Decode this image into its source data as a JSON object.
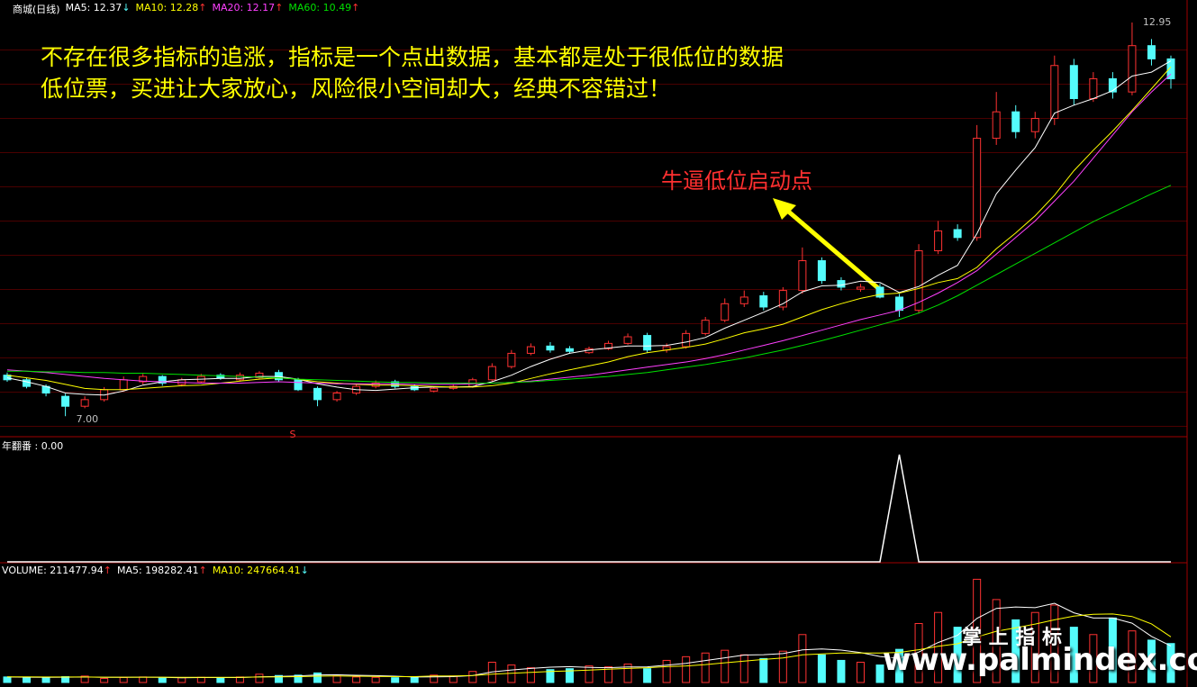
{
  "chart_data": [
    {
      "type": "candlestick",
      "title": "商城(日线)",
      "ylim": [
        6.69,
        13.29
      ],
      "up_color": "#ff3232",
      "down_color": "#54fcfc",
      "open": [
        7.62,
        7.55,
        7.45,
        7.3,
        7.15,
        7.25,
        7.4,
        7.52,
        7.6,
        7.48,
        7.52,
        7.62,
        7.55,
        7.58,
        7.66,
        7.55,
        7.42,
        7.25,
        7.35,
        7.45,
        7.52,
        7.45,
        7.38,
        7.42,
        7.45,
        7.55,
        7.75,
        7.95,
        8.06,
        8.02,
        7.96,
        8.02,
        8.1,
        8.22,
        8.0,
        8.05,
        8.25,
        8.45,
        8.7,
        8.82,
        8.65,
        8.9,
        9.35,
        9.05,
        8.92,
        8.95,
        8.8,
        8.6,
        9.5,
        9.82,
        9.7,
        11.2,
        11.6,
        11.3,
        11.5,
        12.3,
        11.8,
        12.1,
        11.9,
        12.6,
        12.4
      ],
      "high": [
        7.66,
        7.58,
        7.48,
        7.34,
        7.3,
        7.44,
        7.6,
        7.64,
        7.62,
        7.58,
        7.64,
        7.65,
        7.66,
        7.68,
        7.7,
        7.58,
        7.45,
        7.38,
        7.48,
        7.54,
        7.55,
        7.48,
        7.45,
        7.48,
        7.58,
        7.8,
        8.0,
        8.1,
        8.12,
        8.06,
        8.05,
        8.14,
        8.25,
        8.26,
        8.1,
        8.3,
        8.5,
        8.78,
        8.9,
        8.88,
        8.95,
        9.55,
        9.4,
        9.1,
        9.0,
        9.0,
        8.85,
        9.6,
        9.95,
        9.9,
        11.4,
        11.9,
        11.7,
        11.6,
        12.45,
        12.4,
        12.2,
        12.2,
        12.95,
        12.7,
        12.45
      ],
      "low": [
        7.52,
        7.42,
        7.3,
        7.0,
        7.12,
        7.22,
        7.38,
        7.48,
        7.46,
        7.45,
        7.5,
        7.55,
        7.52,
        7.56,
        7.52,
        7.38,
        7.15,
        7.22,
        7.32,
        7.42,
        7.42,
        7.38,
        7.36,
        7.4,
        7.43,
        7.52,
        7.72,
        7.92,
        7.96,
        7.95,
        7.94,
        8.0,
        8.08,
        7.96,
        7.96,
        8.02,
        8.22,
        8.42,
        8.65,
        8.6,
        8.6,
        8.85,
        9.0,
        8.9,
        8.88,
        8.78,
        8.5,
        8.55,
        9.45,
        9.65,
        9.65,
        11.1,
        11.2,
        11.2,
        11.4,
        11.7,
        11.75,
        11.8,
        11.85,
        12.3,
        11.95
      ],
      "close": [
        7.55,
        7.45,
        7.35,
        7.15,
        7.25,
        7.4,
        7.55,
        7.6,
        7.5,
        7.55,
        7.6,
        7.58,
        7.62,
        7.65,
        7.55,
        7.4,
        7.25,
        7.35,
        7.45,
        7.5,
        7.45,
        7.4,
        7.42,
        7.45,
        7.55,
        7.75,
        7.95,
        8.05,
        8.0,
        7.98,
        8.02,
        8.1,
        8.2,
        8.0,
        8.05,
        8.25,
        8.45,
        8.7,
        8.8,
        8.65,
        8.9,
        9.35,
        9.05,
        8.95,
        8.95,
        8.8,
        8.6,
        9.5,
        9.8,
        9.7,
        11.2,
        11.6,
        11.3,
        11.5,
        12.3,
        11.8,
        12.1,
        11.9,
        12.6,
        12.4,
        12.1
      ],
      "series": [
        {
          "name": "MA5: 12.37",
          "trend": "↓",
          "trend_color": "#54fcfc",
          "color": "#ffffff",
          "values": [
            7.58,
            7.52,
            7.45,
            7.35,
            7.33,
            7.32,
            7.38,
            7.47,
            7.52,
            7.55,
            7.56,
            7.57,
            7.57,
            7.6,
            7.6,
            7.56,
            7.49,
            7.44,
            7.4,
            7.39,
            7.41,
            7.43,
            7.44,
            7.44,
            7.45,
            7.52,
            7.62,
            7.75,
            7.86,
            7.95,
            8.0,
            8.03,
            8.06,
            8.06,
            8.07,
            8.12,
            8.19,
            8.33,
            8.45,
            8.57,
            8.7,
            8.88,
            8.97,
            8.98,
            9.04,
            9.02,
            8.87,
            8.96,
            9.13,
            9.28,
            9.76,
            10.36,
            10.72,
            11.06,
            11.58,
            11.7,
            11.8,
            11.92,
            12.14,
            12.2,
            12.37
          ]
        },
        {
          "name": "MA10: 12.28",
          "trend": "↑",
          "trend_color": "#ff3232",
          "color": "#ffff00",
          "values": [
            7.62,
            7.58,
            7.54,
            7.48,
            7.42,
            7.4,
            7.4,
            7.42,
            7.44,
            7.46,
            7.47,
            7.5,
            7.53,
            7.56,
            7.58,
            7.56,
            7.52,
            7.5,
            7.48,
            7.47,
            7.47,
            7.46,
            7.45,
            7.44,
            7.44,
            7.46,
            7.5,
            7.57,
            7.64,
            7.7,
            7.76,
            7.82,
            7.9,
            7.96,
            8.0,
            8.04,
            8.09,
            8.17,
            8.26,
            8.32,
            8.39,
            8.5,
            8.61,
            8.7,
            8.78,
            8.84,
            8.86,
            8.93,
            9.02,
            9.08,
            9.25,
            9.53,
            9.77,
            10.03,
            10.34,
            10.71,
            11.02,
            11.31,
            11.62,
            11.95,
            12.28
          ]
        },
        {
          "name": "MA20: 12.17",
          "trend": "↑",
          "trend_color": "#ff3232",
          "color": "#ff40ff",
          "values": [
            7.7,
            7.68,
            7.66,
            7.63,
            7.6,
            7.57,
            7.55,
            7.53,
            7.52,
            7.51,
            7.5,
            7.5,
            7.5,
            7.51,
            7.52,
            7.51,
            7.5,
            7.49,
            7.49,
            7.49,
            7.49,
            7.48,
            7.48,
            7.48,
            7.49,
            7.5,
            7.51,
            7.53,
            7.56,
            7.59,
            7.62,
            7.66,
            7.7,
            7.74,
            7.78,
            7.82,
            7.87,
            7.93,
            8.0,
            8.07,
            8.14,
            8.22,
            8.3,
            8.38,
            8.46,
            8.53,
            8.6,
            8.72,
            8.86,
            9.02,
            9.2,
            9.45,
            9.7,
            9.95,
            10.25,
            10.55,
            10.9,
            11.25,
            11.6,
            11.9,
            12.17
          ]
        },
        {
          "name": "MA60: 10.49",
          "trend": "↑",
          "trend_color": "#ff3232",
          "color": "#00e000",
          "values": [
            7.68,
            7.68,
            7.67,
            7.67,
            7.66,
            7.66,
            7.65,
            7.65,
            7.64,
            7.63,
            7.62,
            7.61,
            7.6,
            7.59,
            7.58,
            7.56,
            7.55,
            7.54,
            7.53,
            7.52,
            7.51,
            7.51,
            7.5,
            7.5,
            7.5,
            7.5,
            7.51,
            7.52,
            7.54,
            7.56,
            7.58,
            7.6,
            7.63,
            7.66,
            7.7,
            7.74,
            7.78,
            7.83,
            7.88,
            7.94,
            8.0,
            8.07,
            8.14,
            8.22,
            8.3,
            8.38,
            8.46,
            8.56,
            8.68,
            8.82,
            8.98,
            9.14,
            9.3,
            9.46,
            9.62,
            9.78,
            9.94,
            10.08,
            10.22,
            10.36,
            10.49
          ]
        }
      ],
      "annotations": [
        {
          "x": 3,
          "y": 7.0,
          "label": "7.00",
          "color": "#c0c0c0"
        },
        {
          "x": 58,
          "y": 12.95,
          "label": "12.95",
          "color": "#c0c0c0"
        },
        {
          "x": 14,
          "y": 6.72,
          "label": "S",
          "color": "#ff3232"
        }
      ]
    },
    {
      "type": "line",
      "title": "年翻番 : 0.00",
      "color": "#ffffff",
      "ylim": [
        0,
        1.15
      ],
      "values": [
        0,
        0,
        0,
        0,
        0,
        0,
        0,
        0,
        0,
        0,
        0,
        0,
        0,
        0,
        0,
        0,
        0,
        0,
        0,
        0,
        0,
        0,
        0,
        0,
        0,
        0,
        0,
        0,
        0,
        0,
        0,
        0,
        0,
        0,
        0,
        0,
        0,
        0,
        0,
        0,
        0,
        0,
        0,
        0,
        0,
        0,
        1,
        0,
        0,
        0,
        0,
        0,
        0,
        0,
        0,
        0,
        0,
        0,
        0,
        0,
        0
      ]
    },
    {
      "type": "bar",
      "title": "VOLUME: 211477.94",
      "title_trend": "↑",
      "title_trend_color": "#ff3232",
      "ylim": [
        0,
        640000
      ],
      "values": [
        30000,
        28000,
        25000,
        32000,
        35000,
        22000,
        27000,
        30000,
        24000,
        26000,
        28000,
        25000,
        30000,
        45000,
        38000,
        40000,
        52000,
        35000,
        30000,
        28000,
        26000,
        30000,
        40000,
        35000,
        60000,
        110000,
        95000,
        80000,
        70000,
        75000,
        90000,
        85000,
        100000,
        75000,
        120000,
        140000,
        160000,
        175000,
        150000,
        130000,
        170000,
        260000,
        150000,
        120000,
        110000,
        95000,
        180000,
        320000,
        380000,
        300000,
        560000,
        450000,
        340000,
        380000,
        420000,
        300000,
        260000,
        350000,
        280000,
        230000,
        211477.94
      ],
      "series": [
        {
          "name": "MA5: 198282.41",
          "trend": "↑",
          "trend_color": "#ff3232",
          "color": "#ffffff",
          "values": [
            30000,
            29000,
            28000,
            29000,
            30000,
            28000,
            28000,
            29000,
            28000,
            26000,
            27000,
            27000,
            27000,
            31000,
            33000,
            35000,
            41000,
            42000,
            39000,
            37000,
            34000,
            30000,
            31000,
            32000,
            38000,
            57000,
            68000,
            76000,
            83000,
            86000,
            82000,
            80000,
            84000,
            85000,
            94000,
            104000,
            119000,
            134000,
            149000,
            151000,
            157000,
            177000,
            182000,
            176000,
            162000,
            141000,
            131000,
            165000,
            217000,
            256000,
            348000,
            402000,
            410000,
            406000,
            430000,
            378000,
            350000,
            350000,
            322000,
            250000,
            198282.41
          ]
        },
        {
          "name": "MA10: 247664.41",
          "trend": "↓",
          "trend_color": "#54fcfc",
          "color": "#ffff00",
          "values": [
            31000,
            31000,
            30000,
            30000,
            30000,
            29000,
            29000,
            29000,
            29000,
            28000,
            28000,
            28000,
            28000,
            30000,
            31000,
            32000,
            34000,
            35000,
            34000,
            33000,
            32000,
            32000,
            35000,
            35000,
            38000,
            45000,
            50000,
            55000,
            60000,
            63000,
            67000,
            72000,
            76000,
            80000,
            86000,
            90000,
            97000,
            107000,
            116000,
            125000,
            133000,
            150000,
            155000,
            160000,
            160000,
            160000,
            163000,
            178000,
            197000,
            210000,
            247000,
            278000,
            297000,
            317000,
            340000,
            360000,
            370000,
            372000,
            358000,
            318000,
            247664.41
          ]
        }
      ]
    }
  ],
  "notes": {
    "headline": [
      "不存在很多指标的追涨，指标是一个点出数据，基本都是处于很低位的数据",
      "低位票，买进让大家放心，风险很小空间却大，经典不容错过！"
    ],
    "callout": "牛逼低位启动点",
    "watermark": "掌 上 指 标",
    "site": "www.palmindex.com"
  }
}
